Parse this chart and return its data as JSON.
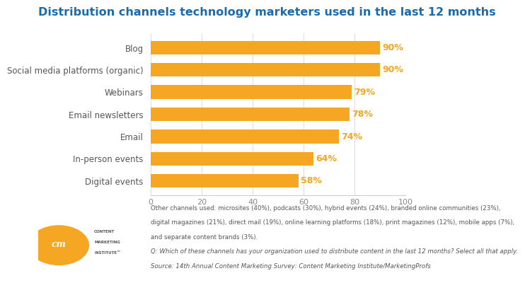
{
  "title": "Distribution channels technology marketers used in the last 12 months",
  "categories": [
    "Digital events",
    "In-person events",
    "Email",
    "Email newsletters",
    "Webinars",
    "Social media platforms (organic)",
    "Blog"
  ],
  "values": [
    58,
    64,
    74,
    78,
    79,
    90,
    90
  ],
  "labels": [
    "58%",
    "64%",
    "74%",
    "78%",
    "79%",
    "90%",
    "90%"
  ],
  "bar_color": "#F5A623",
  "label_color": "#F5A623",
  "title_color": "#1B6AAA",
  "axis_label_color": "#555555",
  "tick_color": "#888888",
  "xlim": [
    0,
    100
  ],
  "xticks": [
    0,
    20,
    40,
    60,
    80,
    100
  ],
  "background_color": "#ffffff",
  "footnote_line1": "Other channels used: microsites (40%), podcasts (30%), hybrid events (24%), branded online communities (23%),",
  "footnote_line2": "digital magazines (21%), direct mail (19%), online learning platforms (18%), print magazines (12%), mobile apps (7%),",
  "footnote_line3": "and separate content brands (3%).",
  "footnote_line4": "Q: Which of these channels has your organization used to distribute content in the last 12 months? Select all that apply.",
  "footnote_line5": "Source: 14th Annual Content Marketing Survey: Content Marketing Institute/MarketingProfs",
  "title_fontsize": 11.5,
  "bar_label_fontsize": 9,
  "category_fontsize": 8.5,
  "tick_fontsize": 8,
  "footnote_fontsize": 6.2
}
